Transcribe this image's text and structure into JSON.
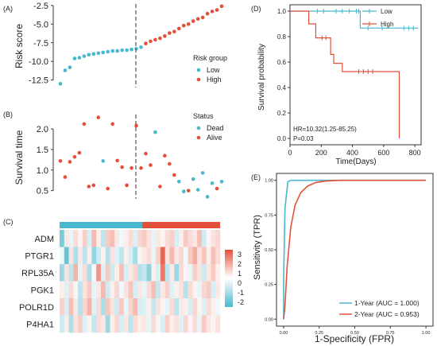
{
  "colors": {
    "low": "#47b8cf",
    "high": "#e3503a",
    "dead": "#47b8cf",
    "alive": "#e3503a"
  },
  "chart_data": [
    {
      "panel": "(A)",
      "type": "scatter",
      "ylabel": "Risk score",
      "ylim": [
        -13.5,
        -2.3
      ],
      "yticks": [
        -12.5,
        -10.0,
        -7.5,
        -5.0,
        -2.5
      ],
      "ytick_labels": [
        "-12.5",
        "-10.0",
        "-7.5",
        "-5.0",
        "-2.5"
      ],
      "cutoff_index": 18.5,
      "legend": {
        "title": "Risk group",
        "entries": [
          "Low",
          "High"
        ],
        "placement": "right"
      },
      "series": [
        {
          "name": "Low",
          "values": [
            -13.0,
            -11.2,
            -10.8,
            -9.6,
            -9.5,
            -9.3,
            -9.1,
            -9.0,
            -8.9,
            -8.8,
            -8.7,
            -8.6,
            -8.6,
            -8.5,
            -8.5,
            -8.4,
            -8.3,
            -8.1
          ]
        },
        {
          "name": "High",
          "values": [
            -7.6,
            -7.3,
            -7.1,
            -6.9,
            -6.6,
            -6.2,
            -6.0,
            -5.6,
            -5.2,
            -5.0,
            -4.6,
            -4.3,
            -4.1,
            -3.6,
            -3.3,
            -3.1,
            -2.6
          ]
        }
      ]
    },
    {
      "panel": "(B)",
      "type": "scatter",
      "ylabel": "Survival time",
      "ylim": [
        0.3,
        2.35
      ],
      "yticks": [
        0.5,
        1.0,
        1.5,
        2.0
      ],
      "ytick_labels": [
        "0.5",
        "1.0",
        "1.5",
        "2.0"
      ],
      "cutoff_index": 18.5,
      "legend": {
        "title": "Status",
        "entries": [
          "Dead",
          "Alive"
        ],
        "placement": "right"
      },
      "points": [
        {
          "i": 1,
          "v": 1.22,
          "s": "Alive"
        },
        {
          "i": 2,
          "v": 0.83,
          "s": "Alive"
        },
        {
          "i": 3,
          "v": 1.2,
          "s": "Alive"
        },
        {
          "i": 4,
          "v": 1.32,
          "s": "Alive"
        },
        {
          "i": 5,
          "v": 1.42,
          "s": "Alive"
        },
        {
          "i": 6,
          "v": 2.12,
          "s": "Alive"
        },
        {
          "i": 7,
          "v": 0.6,
          "s": "Alive"
        },
        {
          "i": 8,
          "v": 0.63,
          "s": "Alive"
        },
        {
          "i": 9,
          "v": 2.28,
          "s": "Alive"
        },
        {
          "i": 10,
          "v": 1.22,
          "s": "Dead"
        },
        {
          "i": 11,
          "v": 0.55,
          "s": "Alive"
        },
        {
          "i": 12,
          "v": 2.12,
          "s": "Alive"
        },
        {
          "i": 13,
          "v": 1.23,
          "s": "Alive"
        },
        {
          "i": 14,
          "v": 1.07,
          "s": "Alive"
        },
        {
          "i": 15,
          "v": 0.63,
          "s": "Alive"
        },
        {
          "i": 16,
          "v": 1.05,
          "s": "Alive"
        },
        {
          "i": 17,
          "v": 2.08,
          "s": "Alive"
        },
        {
          "i": 18,
          "v": 1.05,
          "s": "Alive"
        },
        {
          "i": 19,
          "v": 1.4,
          "s": "Alive"
        },
        {
          "i": 20,
          "v": 1.12,
          "s": "Alive"
        },
        {
          "i": 21,
          "v": 1.92,
          "s": "Dead"
        },
        {
          "i": 22,
          "v": 0.6,
          "s": "Alive"
        },
        {
          "i": 23,
          "v": 1.35,
          "s": "Alive"
        },
        {
          "i": 24,
          "v": 1.15,
          "s": "Alive"
        },
        {
          "i": 25,
          "v": 0.88,
          "s": "Alive"
        },
        {
          "i": 26,
          "v": 0.72,
          "s": "Dead"
        },
        {
          "i": 27,
          "v": 0.48,
          "s": "Dead"
        },
        {
          "i": 28,
          "v": 0.5,
          "s": "Alive"
        },
        {
          "i": 29,
          "v": 0.78,
          "s": "Dead"
        },
        {
          "i": 30,
          "v": 0.52,
          "s": "Dead"
        },
        {
          "i": 31,
          "v": 0.93,
          "s": "Dead"
        },
        {
          "i": 32,
          "v": 0.35,
          "s": "Dead"
        },
        {
          "i": 33,
          "v": 0.68,
          "s": "Dead"
        },
        {
          "i": 34,
          "v": 0.55,
          "s": "Alive"
        },
        {
          "i": 35,
          "v": 0.72,
          "s": "Dead"
        }
      ]
    },
    {
      "panel": "(C)",
      "type": "heatmap",
      "rows": [
        "ADM",
        "PTGR1",
        "RPL35A",
        "PGK1",
        "POLR1D",
        "P4HA1"
      ],
      "group_split": 18,
      "n_cols": 35,
      "colorbar": {
        "ticks": [
          3,
          2,
          1,
          0,
          -1,
          -2
        ],
        "tick_labels": [
          "3",
          "2",
          "1",
          "0",
          "-1",
          "-2"
        ],
        "range": [
          -2.5,
          3.5
        ]
      },
      "values": [
        [
          -1.6,
          0.4,
          -0.3,
          0.6,
          0.2,
          0.8,
          -0.5,
          1.2,
          0.3,
          -0.8,
          0.9,
          1.1,
          0.4,
          -0.2,
          0.3,
          0.6,
          -0.4,
          0.7,
          0.9,
          0.5,
          -0.3,
          0.4,
          0.2,
          0.6,
          0.8,
          -0.5,
          0.3,
          0.9,
          0.6,
          0.4,
          1.1,
          -0.6,
          0.2,
          0.5,
          0.7
        ],
        [
          -0.2,
          -1.8,
          0.5,
          -1.0,
          0.4,
          -0.8,
          0.3,
          -1.3,
          -0.6,
          0.2,
          -0.9,
          0.5,
          -0.4,
          -0.8,
          0.3,
          -0.5,
          -1.1,
          0.2,
          0.4,
          0.6,
          -0.3,
          0.8,
          2.6,
          0.5,
          1.2,
          0.4,
          0.7,
          -0.2,
          0.9,
          1.4,
          0.5,
          1.0,
          0.3,
          1.1,
          0.6
        ],
        [
          -1.2,
          0.5,
          -0.8,
          1.3,
          -0.3,
          0.6,
          -1.0,
          0.2,
          1.8,
          -0.4,
          0.9,
          -0.6,
          0.3,
          1.1,
          -0.5,
          0.4,
          0.7,
          -0.9,
          -0.7,
          -1.4,
          0.3,
          -0.5,
          2.3,
          -0.8,
          0.4,
          -1.2,
          0.6,
          0.2,
          -0.3,
          0.8,
          0.5,
          -0.6,
          0.4,
          0.9,
          0.3
        ],
        [
          0.3,
          -0.4,
          0.6,
          0.2,
          -0.8,
          0.5,
          0.9,
          -0.3,
          0.4,
          1.2,
          -0.6,
          0.3,
          0.7,
          -0.2,
          0.5,
          1.0,
          -0.5,
          0.4,
          -0.3,
          0.6,
          1.1,
          -0.7,
          0.4,
          0.8,
          -0.4,
          0.3,
          0.5,
          -0.9,
          0.6,
          0.2,
          -0.3,
          0.7,
          0.9,
          -0.5,
          0.4
        ],
        [
          0.8,
          -0.5,
          1.1,
          0.4,
          -0.9,
          0.7,
          1.3,
          -0.4,
          0.6,
          -1.0,
          1.0,
          0.5,
          -0.6,
          0.9,
          -0.3,
          0.7,
          1.2,
          -0.5,
          -0.4,
          0.3,
          -0.7,
          0.5,
          0.2,
          -0.3,
          0.6,
          -0.8,
          0.4,
          0.3,
          -0.5,
          0.7,
          0.2,
          -0.4,
          0.6,
          0.3,
          -0.2
        ],
        [
          -0.6,
          0.3,
          -1.0,
          0.5,
          0.8,
          -0.4,
          0.2,
          -0.7,
          0.6,
          0.4,
          -1.2,
          0.3,
          0.7,
          -0.5,
          0.4,
          -0.8,
          0.6,
          0.3,
          0.4,
          -0.3,
          0.6,
          0.2,
          -0.5,
          0.8,
          0.3,
          0.5,
          -0.4,
          0.7,
          0.2,
          0.6,
          -0.3,
          0.9,
          0.4,
          0.2,
          0.5
        ]
      ]
    },
    {
      "panel": "(D)",
      "type": "line",
      "ylabel": "Survival probability",
      "xlabel": "Time(Days)",
      "xlim": [
        0,
        840
      ],
      "ylim": [
        -0.05,
        1.05
      ],
      "xticks": [
        0,
        200,
        400,
        600,
        800
      ],
      "xtick_labels": [
        "0",
        "200",
        "400",
        "600",
        "800"
      ],
      "yticks": [
        0.0,
        0.2,
        0.4,
        0.6,
        0.8,
        1.0
      ],
      "ytick_labels": [
        "0.0",
        "0.2",
        "0.4",
        "0.6",
        "0.8",
        "1.0"
      ],
      "annotation_hr": "HR=10.32(1.25-85.25)",
      "annotation_p": "P=0.03",
      "legend": {
        "entries": [
          "Low",
          "High"
        ],
        "placement": "top-right"
      },
      "series": [
        {
          "name": "Low",
          "steps": [
            [
              0,
              1.0
            ],
            [
              450,
              1.0
            ],
            [
              450,
              0.867
            ],
            [
              820,
              0.867
            ]
          ],
          "censors": [
            [
              175,
              1.0
            ],
            [
              215,
              1.0
            ],
            [
              295,
              1.0
            ],
            [
              335,
              1.0
            ],
            [
              380,
              1.0
            ],
            [
              425,
              1.0
            ],
            [
              440,
              1.0
            ],
            [
              500,
              0.867
            ],
            [
              590,
              0.867
            ],
            [
              730,
              0.867
            ],
            [
              760,
              0.867
            ],
            [
              790,
              0.867
            ]
          ]
        },
        {
          "name": "High",
          "steps": [
            [
              0,
              1.0
            ],
            [
              120,
              1.0
            ],
            [
              120,
              0.9
            ],
            [
              165,
              0.9
            ],
            [
              165,
              0.79
            ],
            [
              260,
              0.79
            ],
            [
              260,
              0.66
            ],
            [
              280,
              0.66
            ],
            [
              280,
              0.59
            ],
            [
              335,
              0.59
            ],
            [
              335,
              0.525
            ],
            [
              700,
              0.525
            ],
            [
              700,
              0.0
            ]
          ],
          "censors": [
            [
              205,
              0.79
            ],
            [
              230,
              0.79
            ],
            [
              440,
              0.525
            ],
            [
              470,
              0.525
            ],
            [
              500,
              0.525
            ],
            [
              530,
              0.525
            ]
          ]
        }
      ]
    },
    {
      "panel": "(E)",
      "type": "line",
      "xlabel": "1-Specificity (FPR)",
      "ylabel": "Sensitivity (TPR)",
      "xlim": [
        -0.05,
        1.05
      ],
      "ylim": [
        -0.05,
        1.05
      ],
      "xticks": [
        0.0,
        0.25,
        0.5,
        0.75,
        1.0
      ],
      "xtick_labels": [
        "0.00",
        "0.25",
        "0.50",
        "0.75",
        "1.00"
      ],
      "yticks": [
        0.0,
        0.25,
        0.5,
        0.75,
        1.0
      ],
      "ytick_labels": [
        "0.00",
        "0.25",
        "0.50",
        "0.75",
        "1.00"
      ],
      "legend": {
        "placement": "bottom-right"
      },
      "series": [
        {
          "name": "1-Year (AUC = 1.000)",
          "x": [
            0,
            0,
            0.01,
            0.03,
            0.05,
            1.0
          ],
          "y": [
            0,
            0.3,
            0.8,
            0.99,
            1.0,
            1.0
          ]
        },
        {
          "name": "2-Year (AUC = 0.953)",
          "x": [
            0,
            0.01,
            0.025,
            0.05,
            0.08,
            0.12,
            0.17,
            0.23,
            0.3,
            0.4,
            1.0
          ],
          "y": [
            0,
            0.1,
            0.38,
            0.66,
            0.82,
            0.91,
            0.96,
            0.985,
            0.995,
            1.0,
            1.0
          ]
        }
      ]
    }
  ]
}
